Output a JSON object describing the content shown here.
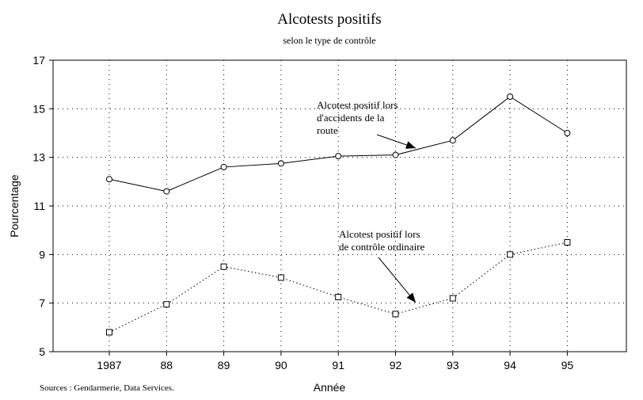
{
  "chart_data": {
    "type": "line",
    "title": "Alcotests positifs",
    "subtitle": "selon le type de contrôle",
    "xlabel": "Année",
    "ylabel": "Pourcentage",
    "source": "Sources : Gendarmerie, Data Services.",
    "categories": [
      "1987",
      "88",
      "89",
      "90",
      "91",
      "92",
      "93",
      "94",
      "95"
    ],
    "ylim": [
      5,
      17
    ],
    "yticks": [
      5,
      7,
      9,
      11,
      13,
      15,
      17
    ],
    "grid": true,
    "series": [
      {
        "name": "Alcotest positif lors d'accidents de la route",
        "label_lines": [
          "Alcotest positif lors",
          "d'accidents de la",
          "route"
        ],
        "values": [
          12.1,
          11.6,
          12.6,
          12.75,
          13.05,
          13.1,
          13.7,
          15.5,
          14.0
        ],
        "style": "solid",
        "marker": "circle"
      },
      {
        "name": "Alcotest positif lors de contrôle ordinaire",
        "label_lines": [
          "Alcotest positif lors",
          "de contrôle ordinaire"
        ],
        "values": [
          5.8,
          6.95,
          8.5,
          8.05,
          7.25,
          6.55,
          7.2,
          9.0,
          9.5
        ],
        "style": "dotted",
        "marker": "square"
      }
    ]
  }
}
